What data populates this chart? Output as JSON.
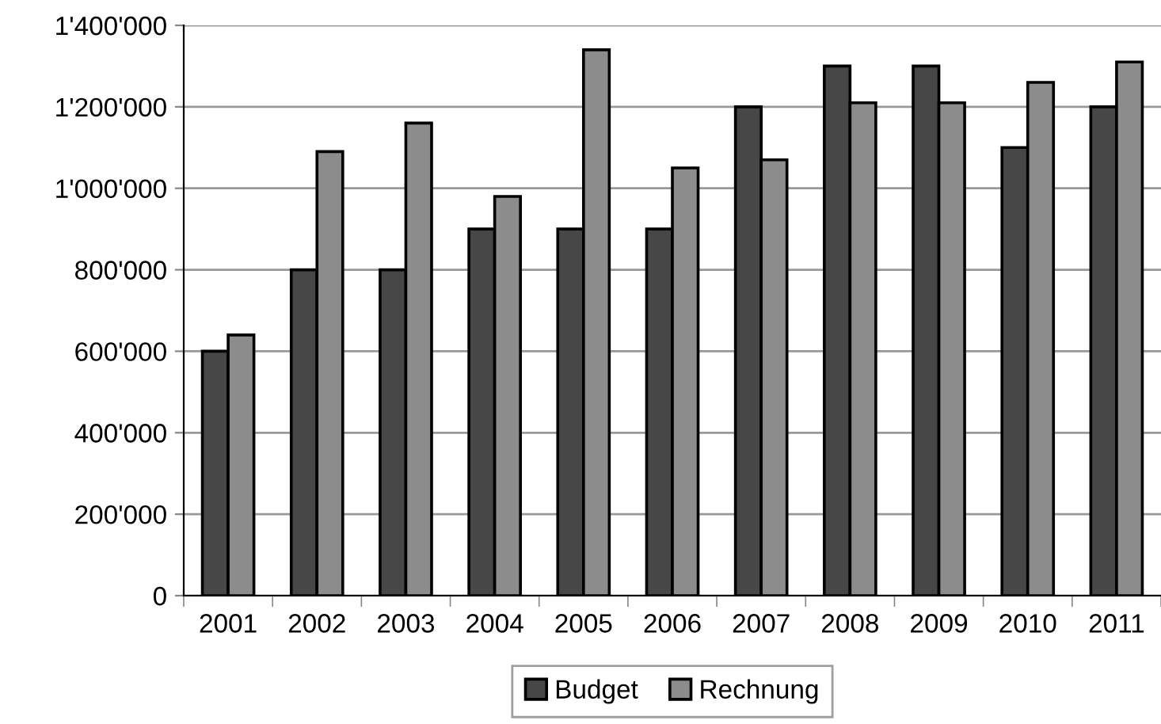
{
  "chart_data": {
    "type": "bar",
    "categories": [
      "2001",
      "2002",
      "2003",
      "2004",
      "2005",
      "2006",
      "2007",
      "2008",
      "2009",
      "2010",
      "2011"
    ],
    "series": [
      {
        "name": "Budget",
        "color": "#474747",
        "values": [
          600000,
          800000,
          800000,
          900000,
          900000,
          900000,
          1200000,
          1300000,
          1300000,
          1100000,
          1200000
        ]
      },
      {
        "name": "Rechnung",
        "color": "#8c8c8c",
        "values": [
          640000,
          1090000,
          1160000,
          980000,
          1340000,
          1050000,
          1070000,
          1210000,
          1210000,
          1260000,
          1310000
        ]
      }
    ],
    "ylim": [
      0,
      1400000
    ],
    "yticks": [
      {
        "value": 0,
        "label": "0"
      },
      {
        "value": 200000,
        "label": "200'000"
      },
      {
        "value": 400000,
        "label": "400'000"
      },
      {
        "value": 600000,
        "label": "600'000"
      },
      {
        "value": 800000,
        "label": "800'000"
      },
      {
        "value": 1000000,
        "label": "1'000'000"
      },
      {
        "value": 1200000,
        "label": "1'200'000"
      },
      {
        "value": 1400000,
        "label": "1'400'000"
      }
    ],
    "grid": "y",
    "legend": "bottom"
  }
}
